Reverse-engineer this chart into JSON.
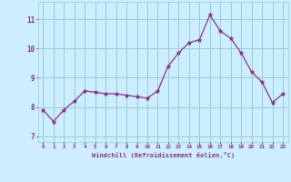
{
  "x": [
    0,
    1,
    2,
    3,
    4,
    5,
    6,
    7,
    8,
    9,
    10,
    11,
    12,
    13,
    14,
    15,
    16,
    17,
    18,
    19,
    20,
    21,
    22,
    23
  ],
  "y": [
    7.9,
    7.5,
    7.9,
    8.2,
    8.55,
    8.5,
    8.45,
    8.45,
    8.4,
    8.35,
    8.3,
    8.55,
    9.4,
    9.85,
    10.2,
    10.3,
    11.15,
    10.6,
    10.35,
    9.85,
    9.2,
    8.85,
    8.15,
    8.45
  ],
  "line_color": "#883388",
  "marker": "*",
  "marker_size": 3.5,
  "bg_color": "#cceeff",
  "grid_color": "#99cccc",
  "xlabel": "Windchill (Refroidissement éolien,°C)",
  "xlabel_color": "#883388",
  "tick_color": "#883388",
  "ylim": [
    6.8,
    11.6
  ],
  "xlim": [
    -0.5,
    23.5
  ],
  "yticks": [
    7,
    8,
    9,
    10,
    11
  ],
  "xticks": [
    0,
    1,
    2,
    3,
    4,
    5,
    6,
    7,
    8,
    9,
    10,
    11,
    12,
    13,
    14,
    15,
    16,
    17,
    18,
    19,
    20,
    21,
    22,
    23
  ]
}
